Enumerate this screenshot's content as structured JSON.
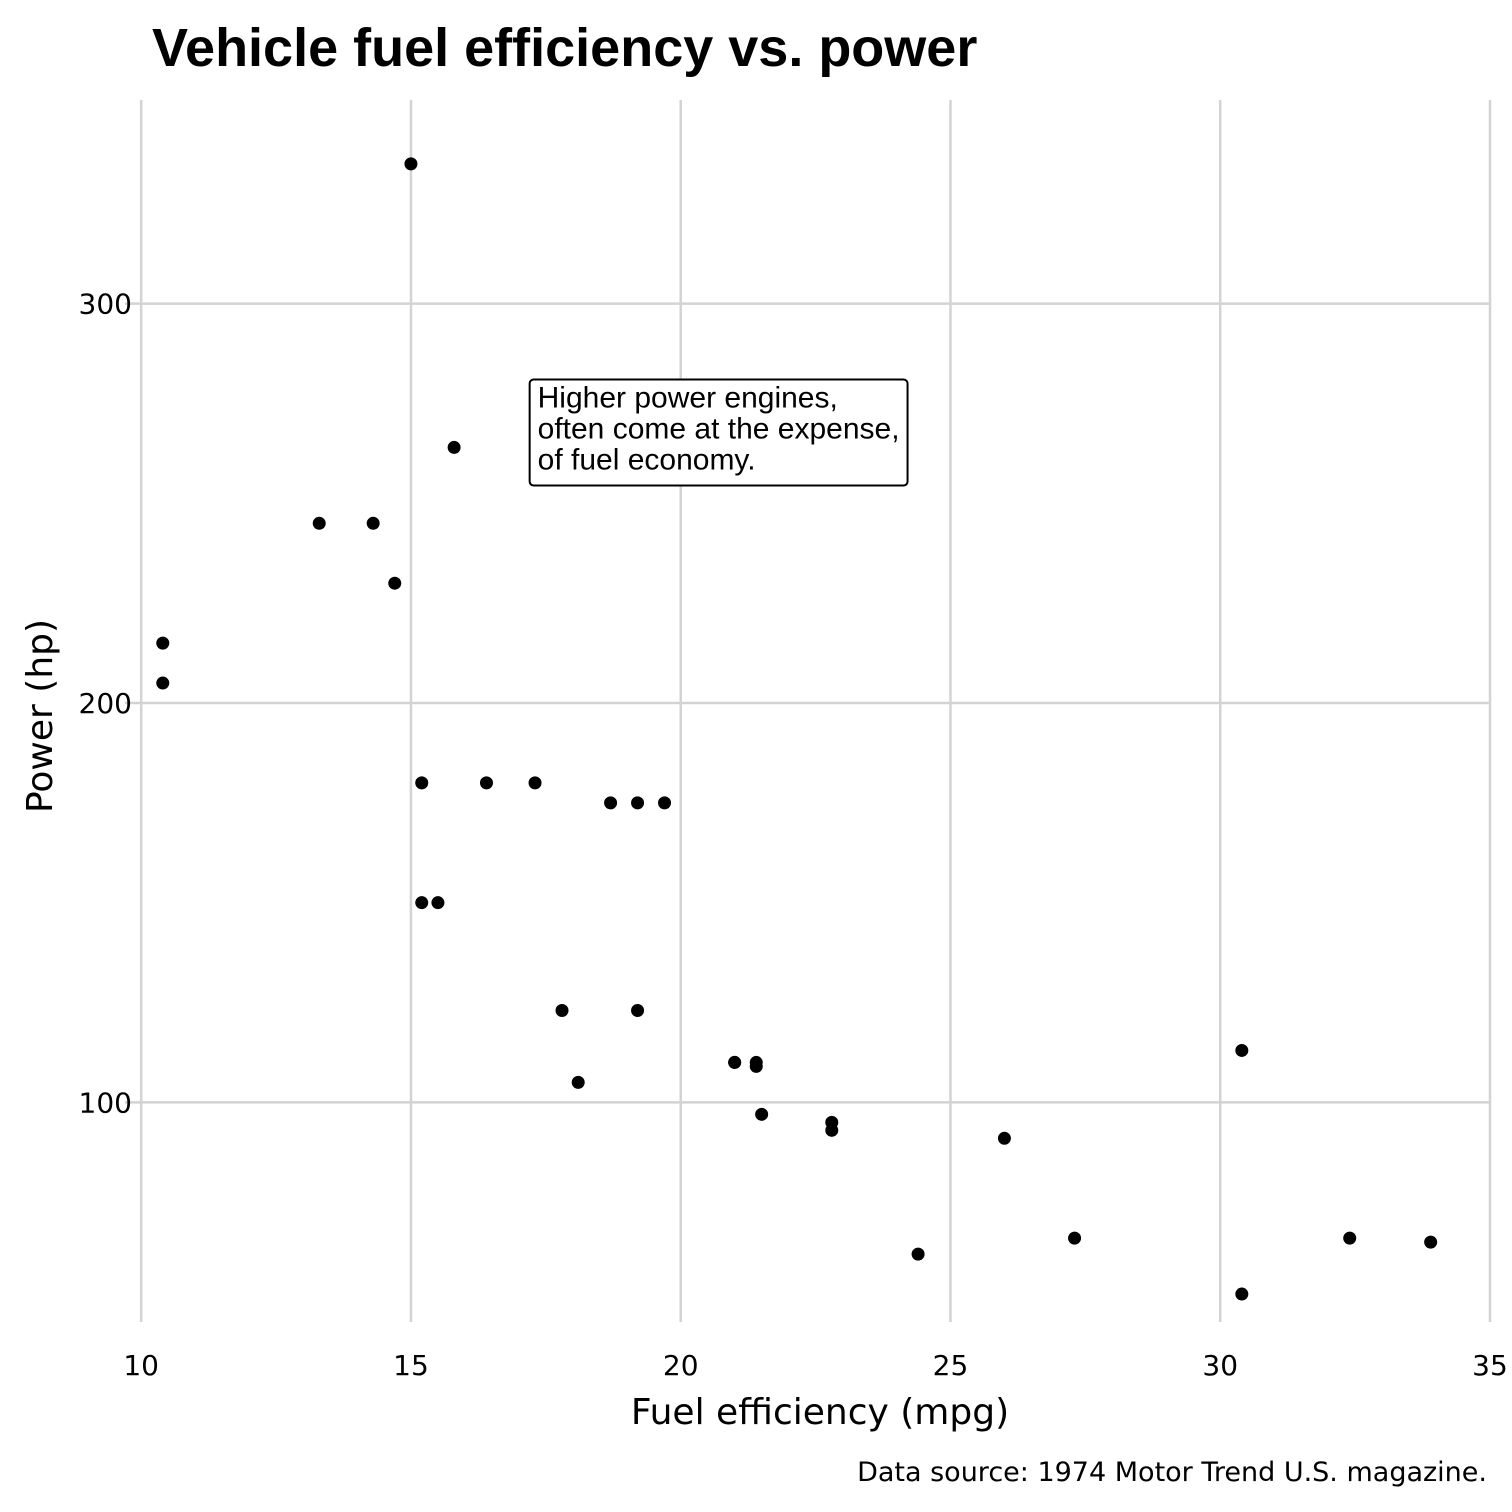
{
  "chart_data": {
    "type": "scatter",
    "title": "Vehicle fuel efficiency vs. power",
    "xlabel": "Fuel efficiency (mpg)",
    "ylabel": "Power (hp)",
    "caption": "Data source: 1974 Motor Trend U.S. magazine.",
    "xlim": [
      9.7,
      35
    ],
    "ylim": [
      45,
      351
    ],
    "xticks": [
      10,
      15,
      20,
      25,
      30,
      35
    ],
    "yticks": [
      100,
      200,
      300
    ],
    "grid": true,
    "annotation": {
      "lines": [
        "Higher power engines,",
        "often come at the expense,",
        "of fuel economy."
      ],
      "x": 17.2,
      "y": 281
    },
    "points": [
      {
        "x": 21.0,
        "y": 110
      },
      {
        "x": 21.0,
        "y": 110
      },
      {
        "x": 22.8,
        "y": 93
      },
      {
        "x": 21.4,
        "y": 110
      },
      {
        "x": 18.7,
        "y": 175
      },
      {
        "x": 18.1,
        "y": 105
      },
      {
        "x": 14.3,
        "y": 245
      },
      {
        "x": 24.4,
        "y": 62
      },
      {
        "x": 22.8,
        "y": 95
      },
      {
        "x": 19.2,
        "y": 123
      },
      {
        "x": 17.8,
        "y": 123
      },
      {
        "x": 16.4,
        "y": 180
      },
      {
        "x": 17.3,
        "y": 180
      },
      {
        "x": 15.2,
        "y": 180
      },
      {
        "x": 10.4,
        "y": 205
      },
      {
        "x": 10.4,
        "y": 215
      },
      {
        "x": 14.7,
        "y": 230
      },
      {
        "x": 32.4,
        "y": 66
      },
      {
        "x": 30.4,
        "y": 52
      },
      {
        "x": 33.9,
        "y": 65
      },
      {
        "x": 21.5,
        "y": 97
      },
      {
        "x": 15.5,
        "y": 150
      },
      {
        "x": 15.2,
        "y": 150
      },
      {
        "x": 13.3,
        "y": 245
      },
      {
        "x": 19.2,
        "y": 175
      },
      {
        "x": 27.3,
        "y": 66
      },
      {
        "x": 26.0,
        "y": 91
      },
      {
        "x": 30.4,
        "y": 113
      },
      {
        "x": 15.8,
        "y": 264
      },
      {
        "x": 19.7,
        "y": 175
      },
      {
        "x": 15.0,
        "y": 335
      },
      {
        "x": 21.4,
        "y": 109
      }
    ]
  }
}
